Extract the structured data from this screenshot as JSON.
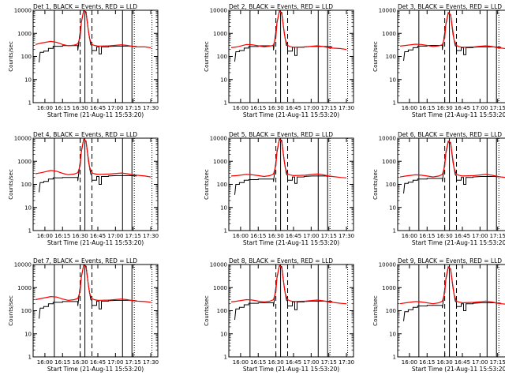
{
  "figure": {
    "ylabel": "Counts/sec",
    "xlabel": "Start Time (21-Aug-11 15:53:20)"
  },
  "axes": {
    "y_scale": "log",
    "ylim": [
      1,
      10000
    ],
    "y_ticks": [
      "1",
      "10",
      "100",
      "1000",
      "10000"
    ],
    "x_ticks": [
      "16:00",
      "16:15",
      "16:30",
      "16:45",
      "17:00",
      "17:15",
      "17:30"
    ],
    "x_tick_minutes": [
      0,
      15,
      30,
      45,
      60,
      75,
      90
    ],
    "xlim_minutes": [
      -10,
      96
    ]
  },
  "colors": {
    "events": "#000000",
    "lld": "#ff0000"
  },
  "markers": {
    "solid_lines_minutes": [
      8,
      34,
      66,
      74
    ],
    "dashed_lines_minutes": [
      30,
      40
    ],
    "dotted_lines_minutes": [
      76,
      91
    ]
  },
  "chart_data": [
    {
      "type": "line",
      "title": "Det 1, BLACK = Events, RED = LLD",
      "series": [
        {
          "name": "Events",
          "x": [
            -5,
            -4,
            -1,
            -1,
            3,
            3,
            7,
            7,
            15,
            15,
            28,
            28,
            31,
            33,
            35,
            37,
            39,
            40,
            40,
            44,
            44,
            46,
            46,
            48,
            48,
            54,
            54,
            61,
            72,
            78
          ],
          "y": [
            55,
            150,
            150,
            170,
            170,
            225,
            225,
            275,
            275,
            295,
            295,
            180,
            3000,
            9500,
            8500,
            1200,
            320,
            300,
            180,
            180,
            260,
            260,
            130,
            130,
            260,
            260,
            270,
            280,
            280,
            270
          ]
        },
        {
          "name": "LLD",
          "x": [
            -8,
            -3,
            5,
            10,
            15,
            20,
            25,
            28,
            30,
            31,
            33,
            35,
            36.5,
            38,
            40,
            42,
            45,
            55,
            65,
            70,
            75,
            78,
            85,
            90
          ],
          "y": [
            330,
            380,
            450,
            410,
            330,
            290,
            310,
            350,
            700,
            3000,
            10000,
            7500,
            2000,
            600,
            330,
            300,
            280,
            290,
            320,
            300,
            270,
            260,
            260,
            240
          ]
        }
      ]
    },
    {
      "type": "line",
      "title": "Det 2, BLACK = Events, RED = LLD",
      "series": [
        {
          "name": "Events",
          "x": [
            -5,
            -4,
            -1,
            -1,
            3,
            3,
            7,
            7,
            15,
            15,
            28,
            28,
            31,
            33,
            35,
            37,
            39,
            40,
            40,
            44,
            44,
            46,
            46,
            48,
            48,
            54,
            54,
            61,
            72,
            78
          ],
          "y": [
            60,
            160,
            160,
            180,
            180,
            230,
            230,
            270,
            270,
            290,
            290,
            185,
            3000,
            9000,
            8000,
            1100,
            300,
            290,
            170,
            170,
            250,
            250,
            110,
            110,
            250,
            250,
            260,
            270,
            270,
            260
          ]
        },
        {
          "name": "LLD",
          "x": [
            -8,
            -3,
            5,
            10,
            15,
            20,
            25,
            28,
            30,
            31,
            33,
            35,
            36.5,
            38,
            40,
            42,
            45,
            55,
            65,
            70,
            75,
            78,
            85,
            90
          ],
          "y": [
            240,
            260,
            330,
            320,
            290,
            260,
            280,
            310,
            700,
            3000,
            9500,
            7000,
            1900,
            550,
            300,
            270,
            250,
            260,
            290,
            270,
            240,
            230,
            220,
            200
          ]
        }
      ]
    },
    {
      "type": "line",
      "title": "Det 3, BLACK = Events, RED = LLD",
      "series": [
        {
          "name": "Events",
          "x": [
            -5,
            -4,
            -1,
            -1,
            3,
            3,
            7,
            7,
            15,
            15,
            28,
            28,
            31,
            33,
            35,
            37,
            39,
            40,
            40,
            44,
            44,
            46,
            46,
            48,
            48,
            54,
            54,
            61,
            72,
            78
          ],
          "y": [
            65,
            160,
            160,
            190,
            190,
            240,
            240,
            280,
            280,
            300,
            300,
            190,
            2500,
            7500,
            6500,
            900,
            290,
            280,
            180,
            180,
            240,
            240,
            120,
            120,
            240,
            240,
            250,
            260,
            260,
            250
          ]
        },
        {
          "name": "LLD",
          "x": [
            -8,
            -3,
            5,
            10,
            15,
            20,
            25,
            28,
            30,
            31,
            33,
            35,
            36.5,
            38,
            40,
            42,
            45,
            55,
            65,
            70,
            75,
            78,
            85,
            90
          ],
          "y": [
            280,
            300,
            340,
            330,
            300,
            270,
            290,
            320,
            650,
            2500,
            8000,
            6500,
            1800,
            520,
            300,
            270,
            250,
            260,
            290,
            270,
            240,
            230,
            210,
            190
          ]
        }
      ]
    },
    {
      "type": "line",
      "title": "Det 4, BLACK = Events, RED = LLD",
      "series": [
        {
          "name": "Events",
          "x": [
            -5,
            -4,
            -1,
            -1,
            3,
            3,
            7,
            7,
            15,
            15,
            28,
            28,
            31,
            33,
            35,
            37,
            39,
            40,
            40,
            44,
            44,
            46,
            46,
            48,
            48,
            54,
            54,
            61,
            72,
            78
          ],
          "y": [
            45,
            120,
            120,
            135,
            135,
            170,
            170,
            190,
            190,
            200,
            200,
            140,
            2500,
            9000,
            7500,
            1000,
            280,
            240,
            150,
            150,
            220,
            220,
            100,
            100,
            220,
            220,
            230,
            240,
            240,
            230
          ]
        },
        {
          "name": "LLD",
          "x": [
            -8,
            -3,
            5,
            10,
            15,
            20,
            25,
            28,
            30,
            31,
            33,
            35,
            36.5,
            38,
            40,
            42,
            45,
            55,
            65,
            70,
            75,
            78,
            85,
            90
          ],
          "y": [
            290,
            320,
            400,
            370,
            300,
            260,
            280,
            320,
            650,
            2800,
            9000,
            7000,
            1900,
            560,
            320,
            290,
            270,
            280,
            310,
            290,
            260,
            250,
            230,
            210
          ]
        }
      ]
    },
    {
      "type": "line",
      "title": "Det 5, BLACK = Events, RED = LLD",
      "series": [
        {
          "name": "Events",
          "x": [
            -5,
            -4,
            -1,
            -1,
            3,
            3,
            7,
            7,
            15,
            15,
            28,
            28,
            31,
            33,
            35,
            37,
            39,
            40,
            40,
            44,
            44,
            46,
            46,
            48,
            48,
            54,
            54,
            61,
            72,
            78
          ],
          "y": [
            35,
            100,
            100,
            120,
            120,
            150,
            150,
            160,
            160,
            170,
            170,
            130,
            2500,
            9000,
            8000,
            1100,
            280,
            240,
            150,
            150,
            210,
            210,
            110,
            110,
            210,
            210,
            220,
            230,
            230,
            220
          ]
        },
        {
          "name": "LLD",
          "x": [
            -8,
            -3,
            5,
            10,
            15,
            20,
            25,
            28,
            30,
            31,
            33,
            35,
            36.5,
            38,
            40,
            42,
            45,
            55,
            65,
            70,
            75,
            78,
            85,
            90
          ],
          "y": [
            230,
            240,
            270,
            260,
            240,
            220,
            240,
            280,
            650,
            2800,
            9000,
            7000,
            1800,
            520,
            280,
            260,
            240,
            250,
            280,
            260,
            230,
            220,
            200,
            190
          ]
        }
      ]
    },
    {
      "type": "line",
      "title": "Det 6, BLACK = Events, RED = LLD",
      "series": [
        {
          "name": "Events",
          "x": [
            -5,
            -4,
            -1,
            -1,
            3,
            3,
            7,
            7,
            15,
            15,
            28,
            28,
            31,
            33,
            35,
            37,
            39,
            40,
            40,
            44,
            44,
            46,
            46,
            48,
            48,
            54,
            54,
            61,
            72,
            78
          ],
          "y": [
            40,
            110,
            110,
            125,
            125,
            150,
            150,
            170,
            170,
            180,
            180,
            130,
            2200,
            7000,
            6000,
            900,
            260,
            230,
            150,
            150,
            200,
            200,
            100,
            100,
            200,
            200,
            210,
            220,
            220,
            210
          ]
        },
        {
          "name": "LLD",
          "x": [
            -8,
            -3,
            5,
            10,
            15,
            20,
            25,
            28,
            30,
            31,
            33,
            35,
            36.5,
            38,
            40,
            42,
            45,
            55,
            65,
            70,
            75,
            78,
            85,
            90
          ],
          "y": [
            210,
            230,
            260,
            250,
            230,
            210,
            230,
            270,
            600,
            2500,
            7500,
            6500,
            1700,
            500,
            270,
            250,
            230,
            240,
            270,
            250,
            220,
            210,
            190,
            180
          ]
        }
      ]
    },
    {
      "type": "line",
      "title": "Det 7, BLACK = Events, RED = LLD",
      "series": [
        {
          "name": "Events",
          "x": [
            -5,
            -4,
            -1,
            -1,
            3,
            3,
            7,
            7,
            15,
            15,
            28,
            28,
            31,
            33,
            35,
            37,
            39,
            40,
            40,
            44,
            44,
            46,
            46,
            48,
            48,
            54,
            54,
            61,
            72,
            78
          ],
          "y": [
            45,
            130,
            130,
            150,
            150,
            200,
            200,
            230,
            230,
            250,
            250,
            160,
            2800,
            9500,
            8500,
            1200,
            300,
            280,
            170,
            170,
            260,
            260,
            120,
            120,
            260,
            260,
            270,
            280,
            280,
            270
          ]
        },
        {
          "name": "LLD",
          "x": [
            -8,
            -3,
            5,
            10,
            15,
            20,
            25,
            28,
            30,
            31,
            33,
            35,
            36.5,
            38,
            40,
            42,
            45,
            55,
            65,
            70,
            75,
            78,
            85,
            90
          ],
          "y": [
            300,
            340,
            410,
            390,
            320,
            280,
            300,
            340,
            700,
            3000,
            9500,
            7500,
            2000,
            580,
            330,
            300,
            280,
            290,
            320,
            300,
            270,
            260,
            250,
            230
          ]
        }
      ]
    },
    {
      "type": "line",
      "title": "Det 8, BLACK = Events, RED = LLD",
      "series": [
        {
          "name": "Events",
          "x": [
            -5,
            -4,
            -1,
            -1,
            3,
            3,
            7,
            7,
            15,
            15,
            28,
            28,
            31,
            33,
            35,
            37,
            39,
            40,
            40,
            44,
            44,
            46,
            46,
            48,
            48,
            54,
            54,
            61,
            72,
            78
          ],
          "y": [
            40,
            120,
            120,
            140,
            140,
            180,
            180,
            210,
            210,
            220,
            220,
            150,
            2700,
            9000,
            8000,
            1100,
            290,
            260,
            160,
            160,
            240,
            240,
            110,
            110,
            240,
            240,
            250,
            260,
            260,
            250
          ]
        },
        {
          "name": "LLD",
          "x": [
            -8,
            -3,
            5,
            10,
            15,
            20,
            25,
            28,
            30,
            31,
            33,
            35,
            36.5,
            38,
            40,
            42,
            45,
            55,
            65,
            70,
            75,
            78,
            85,
            90
          ],
          "y": [
            240,
            260,
            300,
            290,
            260,
            240,
            260,
            300,
            680,
            2900,
            9000,
            7200,
            1900,
            550,
            300,
            270,
            250,
            260,
            290,
            270,
            240,
            230,
            210,
            200
          ]
        }
      ]
    },
    {
      "type": "line",
      "title": "Det 9, BLACK = Events, RED = LLD",
      "series": [
        {
          "name": "Events",
          "x": [
            -5,
            -4,
            -1,
            -1,
            3,
            3,
            7,
            7,
            15,
            15,
            28,
            28,
            31,
            33,
            35,
            37,
            39,
            40,
            40,
            44,
            44,
            46,
            46,
            48,
            48,
            54,
            54,
            61,
            72,
            78
          ],
          "y": [
            35,
            90,
            90,
            110,
            110,
            140,
            140,
            160,
            160,
            170,
            170,
            130,
            2200,
            7500,
            6500,
            950,
            260,
            230,
            150,
            150,
            200,
            200,
            100,
            100,
            200,
            200,
            210,
            220,
            220,
            210
          ]
        },
        {
          "name": "LLD",
          "x": [
            -8,
            -3,
            5,
            10,
            15,
            20,
            25,
            28,
            30,
            31,
            33,
            35,
            36.5,
            38,
            40,
            42,
            45,
            55,
            65,
            70,
            75,
            78,
            85,
            90
          ],
          "y": [
            200,
            220,
            250,
            240,
            220,
            200,
            220,
            260,
            580,
            2500,
            8000,
            6500,
            1700,
            500,
            260,
            240,
            220,
            230,
            260,
            240,
            210,
            200,
            185,
            175
          ]
        }
      ]
    }
  ]
}
